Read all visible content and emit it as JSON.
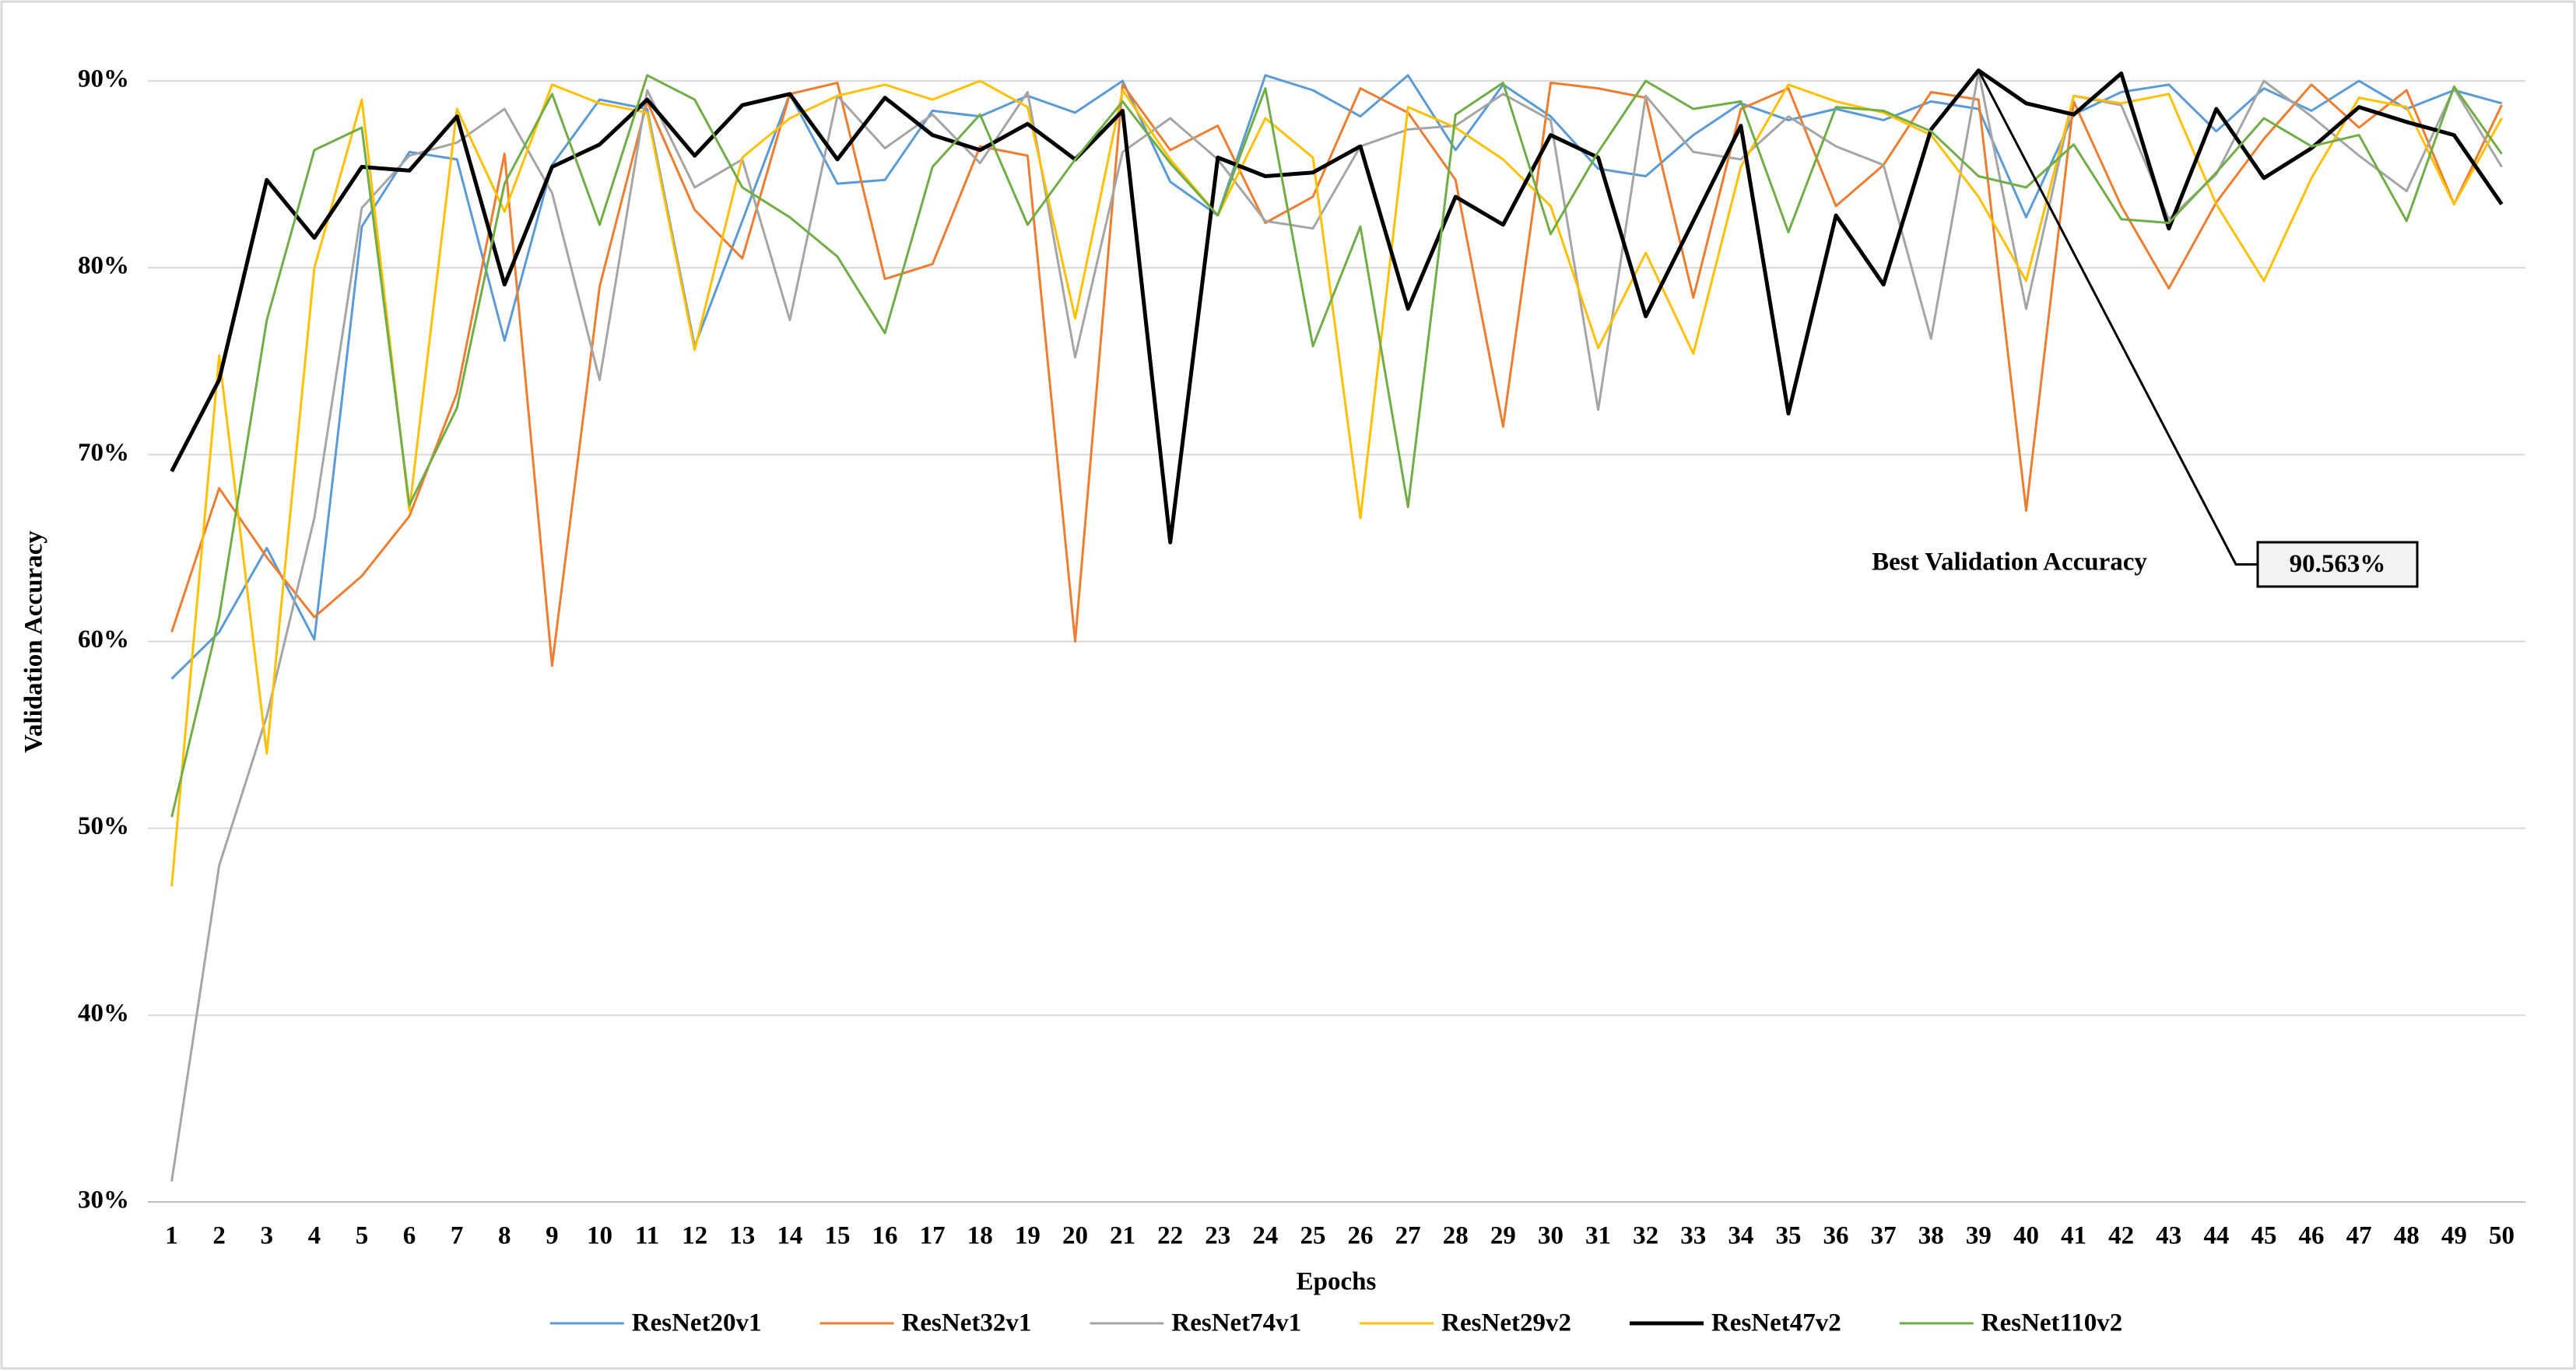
{
  "chart_data": {
    "type": "line",
    "x_label": "Epochs",
    "y_label": "Validation Accuracy",
    "categories": [
      1,
      2,
      3,
      4,
      5,
      6,
      7,
      8,
      9,
      10,
      11,
      12,
      13,
      14,
      15,
      16,
      17,
      18,
      19,
      20,
      21,
      22,
      23,
      24,
      25,
      26,
      27,
      28,
      29,
      30,
      31,
      32,
      33,
      34,
      35,
      36,
      37,
      38,
      39,
      40,
      41,
      42,
      43,
      44,
      45,
      46,
      47,
      48,
      49,
      50
    ],
    "ylim": [
      30,
      90
    ],
    "yticks": [
      {
        "value": 30,
        "label": "30%"
      },
      {
        "value": 40,
        "label": "40%"
      },
      {
        "value": 50,
        "label": "50%"
      },
      {
        "value": 60,
        "label": "60%"
      },
      {
        "value": 70,
        "label": "70%"
      },
      {
        "value": 80,
        "label": "80%"
      },
      {
        "value": 90,
        "label": "90%"
      }
    ],
    "grid": true,
    "legend": "bottom",
    "series": [
      {
        "name": "ResNet20v1",
        "color": "#5b9bd5",
        "values": [
          58,
          60.5,
          65,
          60.1,
          82.2,
          86.2,
          85.8,
          76.1,
          85.5,
          89,
          88.5,
          75.8,
          82.5,
          89.3,
          84.5,
          84.7,
          88.4,
          88.1,
          89.2,
          88.3,
          90,
          84.6,
          82.8,
          90.3,
          89.5,
          88.1,
          90.3,
          86.3,
          89.8,
          88.1,
          85.3,
          84.9,
          87.1,
          88.8,
          87.9,
          88.5,
          87.9,
          88.9,
          88.5,
          82.7,
          88.2,
          89.4,
          89.8,
          87.3,
          89.6,
          88.4,
          90,
          88.5,
          89.5,
          88.8
        ]
      },
      {
        "name": "ResNet32v1",
        "color": "#ed7d31",
        "values": [
          60.5,
          68.2,
          64.5,
          61.3,
          63.5,
          66.7,
          73.3,
          86.1,
          58.7,
          79,
          88.9,
          83.1,
          80.5,
          89.3,
          89.9,
          79.4,
          80.2,
          86.5,
          86,
          60,
          89.8,
          86.3,
          87.6,
          82.4,
          83.8,
          89.6,
          88.3,
          84.7,
          71.5,
          89.9,
          89.6,
          89.1,
          78.4,
          88.5,
          89.6,
          83.3,
          85.5,
          89.4,
          89,
          67,
          88.9,
          83.3,
          78.9,
          83.5,
          86.9,
          89.8,
          87.5,
          89.5,
          83.4,
          88.7
        ]
      },
      {
        "name": "ResNet74v1",
        "color": "#a5a5a5",
        "values": [
          31.1,
          48,
          56,
          66.6,
          83.2,
          86,
          86.7,
          88.5,
          84,
          74,
          89.5,
          84.3,
          85.8,
          77.2,
          89.2,
          86.4,
          88.2,
          85.6,
          89.4,
          75.2,
          86.2,
          88,
          85.8,
          82.5,
          82.1,
          86.5,
          87.4,
          87.6,
          89.3,
          87.9,
          72.4,
          89.2,
          86.2,
          85.8,
          88.1,
          86.5,
          85.5,
          76.2,
          90.5,
          77.8,
          89.2,
          88.7,
          82.6,
          85,
          90,
          88.1,
          86,
          84.1,
          89.6,
          85.4
        ]
      },
      {
        "name": "ResNet29v2",
        "color": "#ffc000",
        "values": [
          46.9,
          75.3,
          54,
          80,
          89,
          67,
          88.5,
          83,
          89.8,
          88.8,
          88.3,
          75.6,
          85.9,
          88,
          89.2,
          89.8,
          89,
          90,
          88.6,
          77.3,
          89.5,
          85.8,
          82.8,
          88,
          85.9,
          66.6,
          88.6,
          87.5,
          85.8,
          83.3,
          75.7,
          80.8,
          75.4,
          85.4,
          89.8,
          88.9,
          88.3,
          87.1,
          83.8,
          79.3,
          89.2,
          88.8,
          89.3,
          83.4,
          79.3,
          84.8,
          89.1,
          88.6,
          83.4,
          88
        ]
      },
      {
        "name": "ResNet47v2",
        "color": "#000000",
        "values": [
          69.1,
          74,
          84.7,
          81.6,
          85.4,
          85.2,
          88.1,
          79.1,
          85.4,
          86.6,
          89,
          86,
          88.7,
          89.3,
          85.8,
          89.1,
          87.1,
          86.3,
          87.7,
          85.8,
          88.4,
          65.3,
          85.9,
          84.9,
          85.1,
          86.5,
          77.8,
          83.8,
          82.3,
          87.1,
          85.9,
          77.4,
          82.5,
          87.6,
          72.2,
          82.8,
          79.1,
          87.4,
          90.563,
          88.8,
          88.2,
          90.4,
          82.1,
          88.5,
          84.8,
          86.4,
          88.6,
          87.8,
          87.1,
          83.4
        ]
      },
      {
        "name": "ResNet110v2",
        "color": "#70ad47",
        "values": [
          50.6,
          61.3,
          77.2,
          86.3,
          87.5,
          67.3,
          72.5,
          84.5,
          89.3,
          82.3,
          90.3,
          89,
          84.3,
          82.7,
          80.6,
          76.5,
          85.4,
          88.2,
          82.3,
          85.8,
          88.9,
          85.6,
          82.8,
          89.6,
          75.8,
          82.2,
          67.2,
          88.2,
          89.9,
          81.8,
          86.2,
          90,
          88.5,
          88.9,
          81.9,
          88.6,
          88.4,
          87.3,
          84.9,
          84.3,
          86.6,
          82.6,
          82.4,
          85.1,
          88,
          86.5,
          87.1,
          82.5,
          89.7,
          86.1
        ]
      }
    ],
    "annotation": {
      "text": "Best Validation Accuracy",
      "label": "90.563%",
      "value": 90.563
    }
  }
}
